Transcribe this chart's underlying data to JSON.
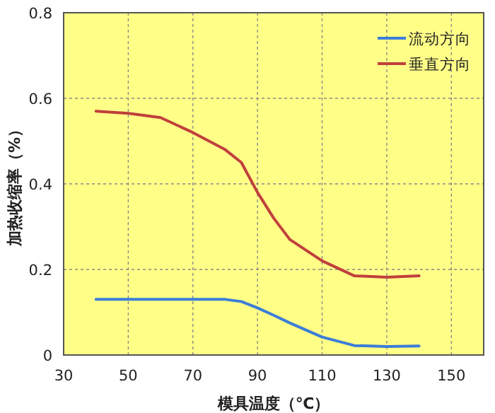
{
  "chart_data": {
    "type": "line",
    "xlabel": "模具温度（℃）",
    "ylabel": "加热收缩率（%）",
    "x": [
      40,
      50,
      60,
      70,
      80,
      85,
      90,
      95,
      100,
      110,
      120,
      130,
      140
    ],
    "series": [
      {
        "name": "流动方向",
        "color": "#3b7dd8",
        "values": [
          0.13,
          0.13,
          0.13,
          0.13,
          0.13,
          0.125,
          0.11,
          0.093,
          0.075,
          0.042,
          0.022,
          0.02,
          0.021
        ]
      },
      {
        "name": "垂直方向",
        "color": "#c0403c",
        "values": [
          0.57,
          0.565,
          0.555,
          0.52,
          0.48,
          0.45,
          0.38,
          0.32,
          0.27,
          0.22,
          0.185,
          0.182,
          0.185
        ]
      }
    ],
    "xlim": [
      30,
      160
    ],
    "ylim": [
      0,
      0.8
    ],
    "xticks": [
      30,
      50,
      70,
      90,
      110,
      130,
      150
    ],
    "yticks": [
      0,
      0.2,
      0.4,
      0.6,
      0.8
    ],
    "grid": true,
    "legend": "top right"
  }
}
